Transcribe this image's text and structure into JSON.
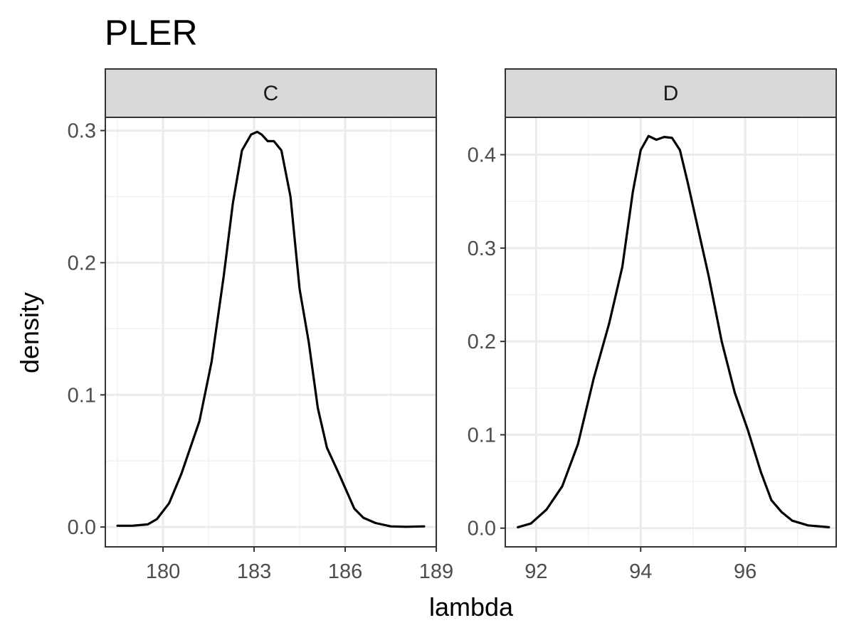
{
  "chart_data": {
    "type": "line",
    "title": "PLER",
    "xlabel": "lambda",
    "ylabel": "density",
    "grid": true,
    "legend": "none",
    "colors": {
      "line": "#000000",
      "strip_fill": "#d9d9d9",
      "grid_major": "#ebebeb",
      "grid_minor": "#f2f2f2",
      "panel_border": "#333333",
      "tick_text": "#4d4d4d"
    },
    "panels": [
      {
        "facet": "C",
        "xlim": [
          178.1,
          189.0
        ],
        "ylim": [
          -0.015,
          0.31
        ],
        "x_ticks": [
          180,
          183,
          186,
          189
        ],
        "x_tick_labels": [
          "180",
          "183",
          "186",
          "189"
        ],
        "y_ticks": [
          0.0,
          0.1,
          0.2,
          0.3
        ],
        "y_tick_labels": [
          "0.0",
          "0.1",
          "0.2",
          "0.3"
        ],
        "x": [
          178.5,
          179.0,
          179.5,
          179.8,
          180.2,
          180.6,
          181.2,
          181.6,
          182.0,
          182.3,
          182.6,
          182.9,
          183.1,
          183.25,
          183.45,
          183.65,
          183.9,
          184.2,
          184.5,
          184.8,
          185.1,
          185.4,
          185.8,
          186.3,
          186.6,
          187.0,
          187.5,
          188.0,
          188.6
        ],
        "y": [
          0.001,
          0.001,
          0.002,
          0.006,
          0.018,
          0.04,
          0.08,
          0.125,
          0.19,
          0.245,
          0.285,
          0.297,
          0.299,
          0.297,
          0.292,
          0.292,
          0.285,
          0.25,
          0.18,
          0.14,
          0.09,
          0.06,
          0.04,
          0.014,
          0.007,
          0.003,
          0.0005,
          0.0002,
          0.0005
        ]
      },
      {
        "facet": "D",
        "xlim": [
          91.41,
          97.74
        ],
        "ylim": [
          -0.02,
          0.44
        ],
        "x_ticks": [
          92,
          94,
          96
        ],
        "x_tick_labels": [
          "92",
          "94",
          "96"
        ],
        "y_ticks": [
          0.0,
          0.1,
          0.2,
          0.3,
          0.4
        ],
        "y_tick_labels": [
          "0.0",
          "0.1",
          "0.2",
          "0.3",
          "0.4"
        ],
        "x": [
          91.65,
          91.9,
          92.2,
          92.5,
          92.8,
          93.1,
          93.4,
          93.65,
          93.85,
          94.0,
          94.15,
          94.3,
          94.45,
          94.6,
          94.75,
          94.9,
          95.1,
          95.3,
          95.55,
          95.8,
          96.05,
          96.3,
          96.5,
          96.7,
          96.9,
          97.2,
          97.6
        ],
        "y": [
          0.001,
          0.005,
          0.02,
          0.045,
          0.09,
          0.16,
          0.22,
          0.28,
          0.36,
          0.405,
          0.42,
          0.416,
          0.419,
          0.418,
          0.405,
          0.37,
          0.32,
          0.27,
          0.2,
          0.145,
          0.105,
          0.06,
          0.03,
          0.017,
          0.008,
          0.003,
          0.001
        ]
      }
    ]
  }
}
